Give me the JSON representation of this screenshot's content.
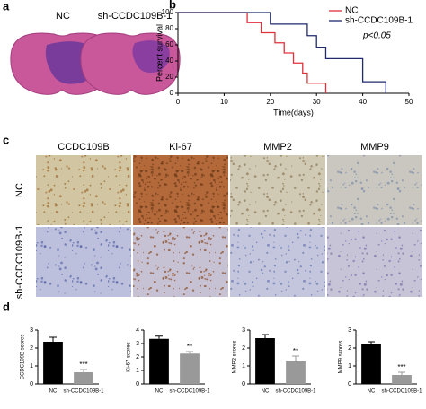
{
  "panels": {
    "a": {
      "letter": "a",
      "labels": [
        "NC",
        "sh-CCDC109B-1"
      ]
    },
    "c": {
      "letter": "c",
      "columns": [
        "CCDC109B",
        "Ki-67",
        "MMP2",
        "MMP9"
      ],
      "rows": [
        "NC",
        "sh-CCDC109B-1"
      ]
    },
    "b": {
      "letter": "b"
    },
    "d": {
      "letter": "d"
    }
  },
  "chart_data": [
    {
      "type": "step",
      "xlabel": "Time(days)",
      "ylabel": "Percent survival",
      "annotation": "p<0.05",
      "xlim": [
        0,
        50
      ],
      "xticks": [
        0,
        10,
        20,
        30,
        40,
        50
      ],
      "ylim": [
        0,
        100
      ],
      "yticks": [
        0,
        20,
        40,
        60,
        80,
        100
      ],
      "legend": "upper right",
      "series": [
        {
          "name": "NC",
          "color": "#e0303a",
          "x": [
            0,
            15,
            18,
            21,
            23,
            25,
            27,
            28,
            32
          ],
          "values": [
            100,
            87.5,
            75,
            62.5,
            50,
            37.5,
            25,
            12.5,
            0
          ]
        },
        {
          "name": "sh-CCDC109B-1",
          "color": "#1f2a6e",
          "x": [
            0,
            20,
            28,
            30,
            32,
            40,
            45
          ],
          "values": [
            100,
            85.7,
            71.4,
            57.1,
            42.9,
            14.3,
            0
          ]
        }
      ]
    },
    {
      "type": "bar",
      "ylabel": "CCDC109B scores",
      "categories": [
        "NC",
        "sh-CCDC109B-1"
      ],
      "values": [
        2.35,
        0.65
      ],
      "errors": [
        0.25,
        0.15
      ],
      "colors": [
        "#000000",
        "#999999"
      ],
      "ylim": [
        0,
        3
      ],
      "yticks": [
        0,
        1,
        2,
        3
      ],
      "annotation": "***"
    },
    {
      "type": "bar",
      "ylabel": "Ki-67 scores",
      "categories": [
        "NC",
        "sh-CCDC109B-1"
      ],
      "values": [
        3.35,
        2.25
      ],
      "errors": [
        0.2,
        0.15
      ],
      "colors": [
        "#000000",
        "#999999"
      ],
      "ylim": [
        0,
        4
      ],
      "yticks": [
        0,
        1,
        2,
        3,
        4
      ],
      "annotation": "**"
    },
    {
      "type": "bar",
      "ylabel": "MMP2 scores",
      "categories": [
        "NC",
        "sh-CCDC109B-1"
      ],
      "values": [
        2.55,
        1.25
      ],
      "errors": [
        0.2,
        0.3
      ],
      "colors": [
        "#000000",
        "#999999"
      ],
      "ylim": [
        0,
        3
      ],
      "yticks": [
        0,
        1,
        2,
        3
      ],
      "annotation": "**"
    },
    {
      "type": "bar",
      "ylabel": "MMP9 scores",
      "categories": [
        "NC",
        "sh-CCDC109B-1"
      ],
      "values": [
        2.2,
        0.5
      ],
      "errors": [
        0.15,
        0.15
      ],
      "colors": [
        "#000000",
        "#999999"
      ],
      "ylim": [
        0,
        3
      ],
      "yticks": [
        0,
        1,
        2,
        3
      ],
      "annotation": "***"
    }
  ]
}
